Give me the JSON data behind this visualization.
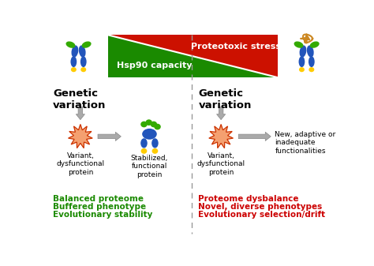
{
  "bg_color": "#ffffff",
  "title": "Proteotoxic stress",
  "hsp90_label": "Hsp90 capacity",
  "left_header": "Genetic\nvariation",
  "right_header": "Genetic\nvariation",
  "left_label1": "Variant,\ndysfunctional\nprotein",
  "left_label2": "Stabilized,\nfunctional\nprotein",
  "right_label1": "Variant,\ndysfunctional\nprotein",
  "right_label2": "New, adaptive or\ninadequate\nfunctionalities",
  "left_footer1": "Balanced proteome",
  "left_footer2": "Buffered phenotype",
  "left_footer3": "Evolutionary stability",
  "right_footer1": "Proteome dysbalance",
  "right_footer2": "Novel, diverse phenotypes",
  "right_footer3": "Evolutionary selection/drift",
  "green_color": "#1a8a00",
  "red_color": "#cc0000",
  "arrow_gray": "#aaaaaa",
  "dashed_line_color": "#999999",
  "triangle_green": "#1a8a00",
  "triangle_red": "#cc1100",
  "protein_blue": "#2255bb",
  "protein_green": "#33aa00",
  "protein_yellow": "#ffcc00",
  "starburst_fill": "#f4a070",
  "starburst_edge": "#cc3300"
}
